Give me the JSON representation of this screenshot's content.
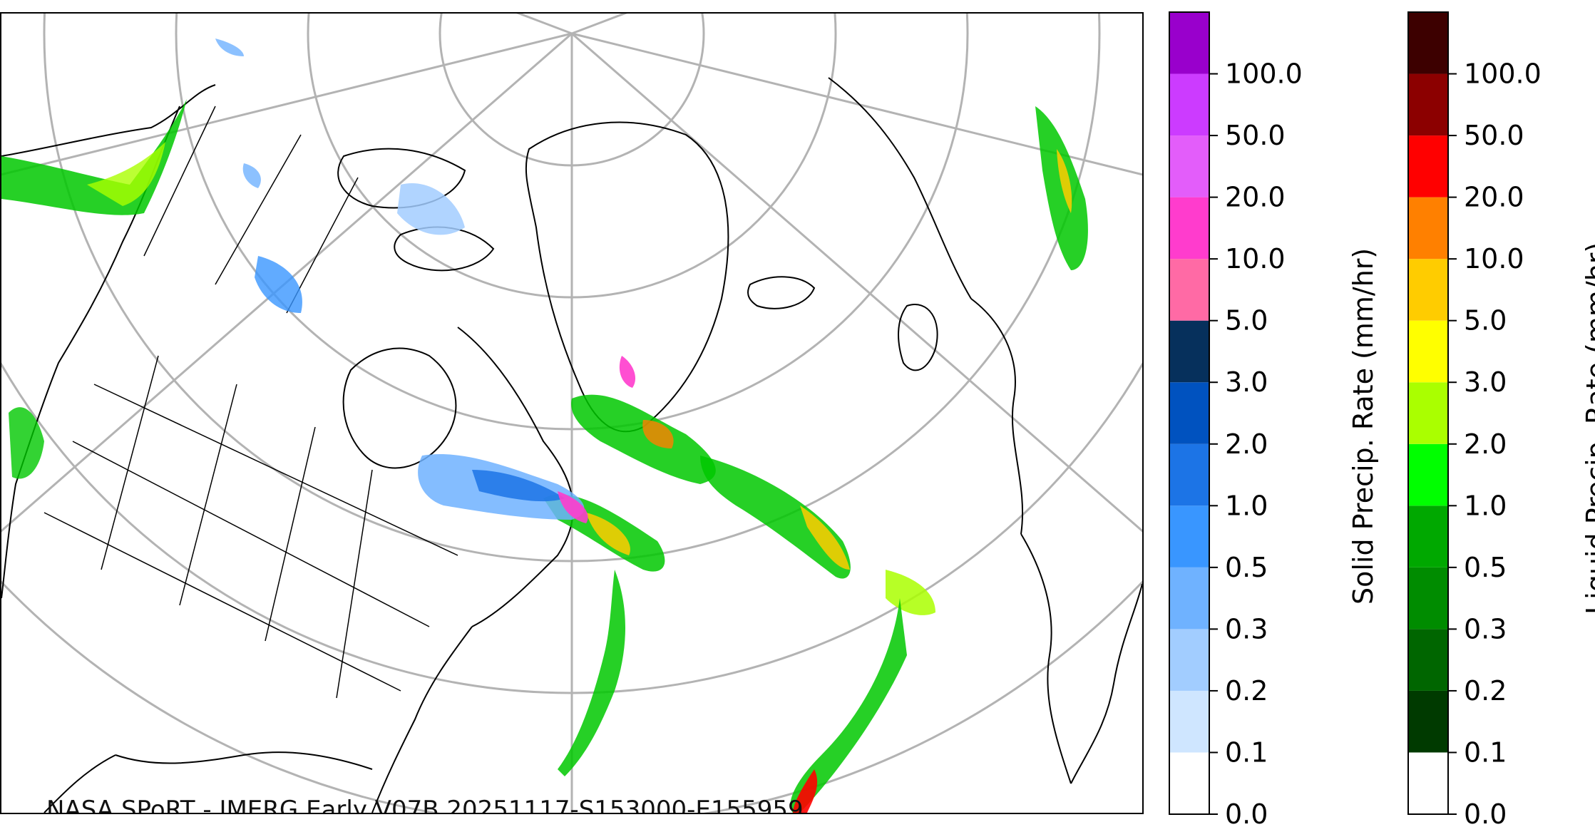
{
  "credit": "NASA SPoRT - IMERG Early V07B 20251117-S153000-E155959",
  "solid_colorbar": {
    "label": "Solid Precip. Rate (mm/hr)",
    "ticks": [
      "0.0",
      "0.1",
      "0.2",
      "0.3",
      "0.5",
      "1.0",
      "2.0",
      "3.0",
      "5.0",
      "10.0",
      "20.0",
      "50.0",
      "100.0"
    ],
    "colors": [
      "#ffffff",
      "#cfe6ff",
      "#a2cdff",
      "#6fb2ff",
      "#3996ff",
      "#1c74e6",
      "#0052bf",
      "#06305c",
      "#ff6aa5",
      "#ff3ccd",
      "#e35dfa",
      "#cc3bff",
      "#9900cc"
    ]
  },
  "liquid_colorbar": {
    "label": "Liquid Precip. Rate (mm/hr)",
    "ticks": [
      "0.0",
      "0.1",
      "0.2",
      "0.3",
      "0.5",
      "1.0",
      "2.0",
      "3.0",
      "5.0",
      "10.0",
      "20.0",
      "50.0",
      "100.0"
    ],
    "colors": [
      "#ffffff",
      "#003a00",
      "#006600",
      "#008c00",
      "#00a800",
      "#00ff00",
      "#aaff00",
      "#ffff00",
      "#ffcc00",
      "#ff8000",
      "#ff0000",
      "#8c0000",
      "#3d0000"
    ]
  }
}
